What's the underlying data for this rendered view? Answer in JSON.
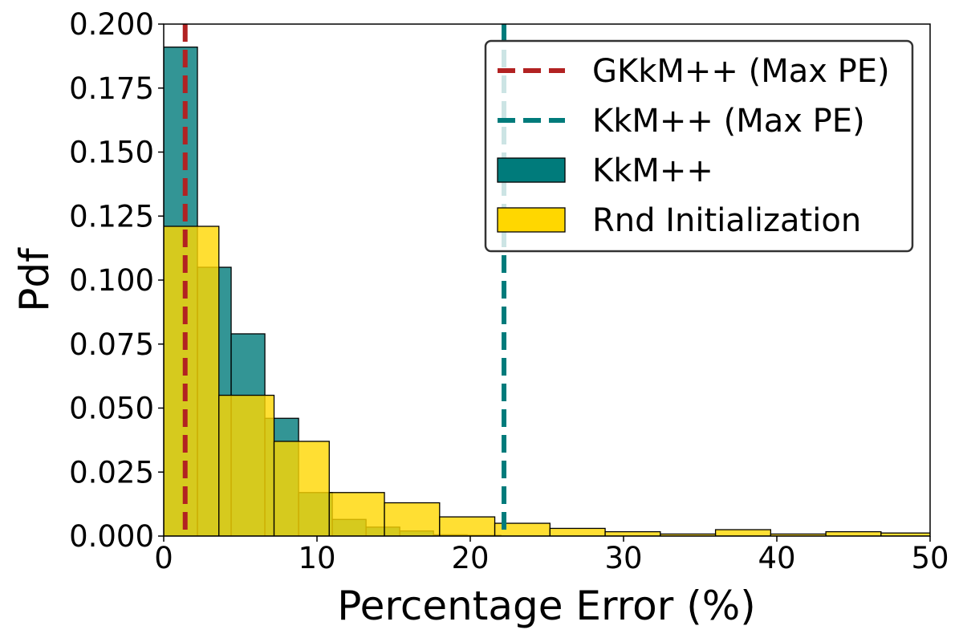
{
  "chart_data": {
    "type": "bar",
    "title": "",
    "xlabel": "Percentage Error (%)",
    "ylabel": "Pdf",
    "xlim": [
      0,
      50
    ],
    "ylim": [
      0,
      0.2
    ],
    "xticks": [
      "0",
      "10",
      "20",
      "30",
      "40",
      "50"
    ],
    "yticks": [
      "0.000",
      "0.025",
      "0.050",
      "0.075",
      "0.100",
      "0.125",
      "0.150",
      "0.175",
      "0.200"
    ],
    "grid": false,
    "legend_position": "top-right",
    "lines": [
      {
        "name": "GKkM++ (Max PE)",
        "x": 1.4,
        "color": "#b22222",
        "style": "dashed"
      },
      {
        "name": "KkM++ (Max PE)",
        "x": 22.2,
        "color": "#007b7b",
        "style": "dashed"
      }
    ],
    "series": [
      {
        "name": "KkM++",
        "color": "#007b7b",
        "bins": [
          {
            "x0": 0.0,
            "x1": 2.2,
            "value": 0.191
          },
          {
            "x0": 2.2,
            "x1": 4.4,
            "value": 0.105
          },
          {
            "x0": 4.4,
            "x1": 6.6,
            "value": 0.079
          },
          {
            "x0": 6.6,
            "x1": 8.8,
            "value": 0.046
          },
          {
            "x0": 8.8,
            "x1": 11.0,
            "value": 0.017
          },
          {
            "x0": 11.0,
            "x1": 13.2,
            "value": 0.0065
          },
          {
            "x0": 13.2,
            "x1": 15.4,
            "value": 0.0035
          },
          {
            "x0": 15.4,
            "x1": 17.6,
            "value": 0.002
          },
          {
            "x0": 17.6,
            "x1": 19.8,
            "value": 0.0005
          },
          {
            "x0": 19.8,
            "x1": 22.0,
            "value": 0.0003
          }
        ]
      },
      {
        "name": "Rnd Initialization",
        "color": "#ffd700",
        "bins": [
          {
            "x0": 0.0,
            "x1": 3.6,
            "value": 0.121
          },
          {
            "x0": 3.6,
            "x1": 7.2,
            "value": 0.055
          },
          {
            "x0": 7.2,
            "x1": 10.8,
            "value": 0.037
          },
          {
            "x0": 10.8,
            "x1": 14.4,
            "value": 0.017
          },
          {
            "x0": 14.4,
            "x1": 18.0,
            "value": 0.013
          },
          {
            "x0": 18.0,
            "x1": 21.6,
            "value": 0.0075
          },
          {
            "x0": 21.6,
            "x1": 25.2,
            "value": 0.005
          },
          {
            "x0": 25.2,
            "x1": 28.8,
            "value": 0.003
          },
          {
            "x0": 28.8,
            "x1": 32.4,
            "value": 0.0017
          },
          {
            "x0": 32.4,
            "x1": 36.0,
            "value": 0.0008
          },
          {
            "x0": 36.0,
            "x1": 39.6,
            "value": 0.0025
          },
          {
            "x0": 39.6,
            "x1": 43.2,
            "value": 0.0008
          },
          {
            "x0": 43.2,
            "x1": 46.8,
            "value": 0.0017
          },
          {
            "x0": 46.8,
            "x1": 50.4,
            "value": 0.0012
          }
        ]
      }
    ],
    "legend": [
      {
        "label": "GKkM++ (Max PE)",
        "kind": "line",
        "color": "#b22222"
      },
      {
        "label": "KkM++ (Max PE)",
        "kind": "line",
        "color": "#007b7b"
      },
      {
        "label": "KkM++",
        "kind": "patch",
        "color": "#007b7b"
      },
      {
        "label": "Rnd Initialization",
        "kind": "patch",
        "color": "#ffd700"
      }
    ]
  }
}
